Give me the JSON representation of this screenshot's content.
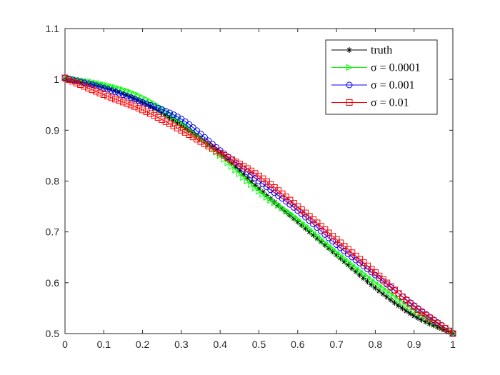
{
  "chart_data": {
    "type": "line",
    "title": "",
    "xlabel": "",
    "ylabel": "",
    "xlim": [
      0,
      1
    ],
    "ylim": [
      0.5,
      1.1
    ],
    "xticks": [
      "0",
      "0.1",
      "0.2",
      "0.3",
      "0.4",
      "0.5",
      "0.6",
      "0.7",
      "0.8",
      "0.9",
      "1"
    ],
    "yticks": [
      "0.5",
      "0.6",
      "0.7",
      "0.8",
      "0.9",
      "1",
      "1.1"
    ],
    "grid": false,
    "legend_position": "top-right",
    "x": [
      0,
      0.1,
      0.2,
      0.3,
      0.4,
      0.5,
      0.6,
      0.7,
      0.8,
      0.9,
      1.0
    ],
    "series": [
      {
        "name": "truth",
        "color": "#000000",
        "marker": "asterisk",
        "values": [
          1.0,
          0.985,
          0.955,
          0.91,
          0.855,
          0.785,
          0.72,
          0.655,
          0.59,
          0.535,
          0.5
        ]
      },
      {
        "name": "σ = 0.0001",
        "color": "#00ff00",
        "marker": "triangle-right",
        "values": [
          1.003,
          0.99,
          0.965,
          0.915,
          0.85,
          0.78,
          0.725,
          0.66,
          0.6,
          0.545,
          0.5
        ]
      },
      {
        "name": "σ = 0.001",
        "color": "#0000ff",
        "marker": "circle",
        "values": [
          1.003,
          0.983,
          0.955,
          0.922,
          0.86,
          0.8,
          0.742,
          0.675,
          0.615,
          0.555,
          0.5
        ]
      },
      {
        "name": "σ = 0.01",
        "color": "#ff0000",
        "marker": "square",
        "values": [
          1.003,
          0.97,
          0.94,
          0.9,
          0.855,
          0.81,
          0.75,
          0.685,
          0.62,
          0.553,
          0.5
        ]
      }
    ]
  }
}
